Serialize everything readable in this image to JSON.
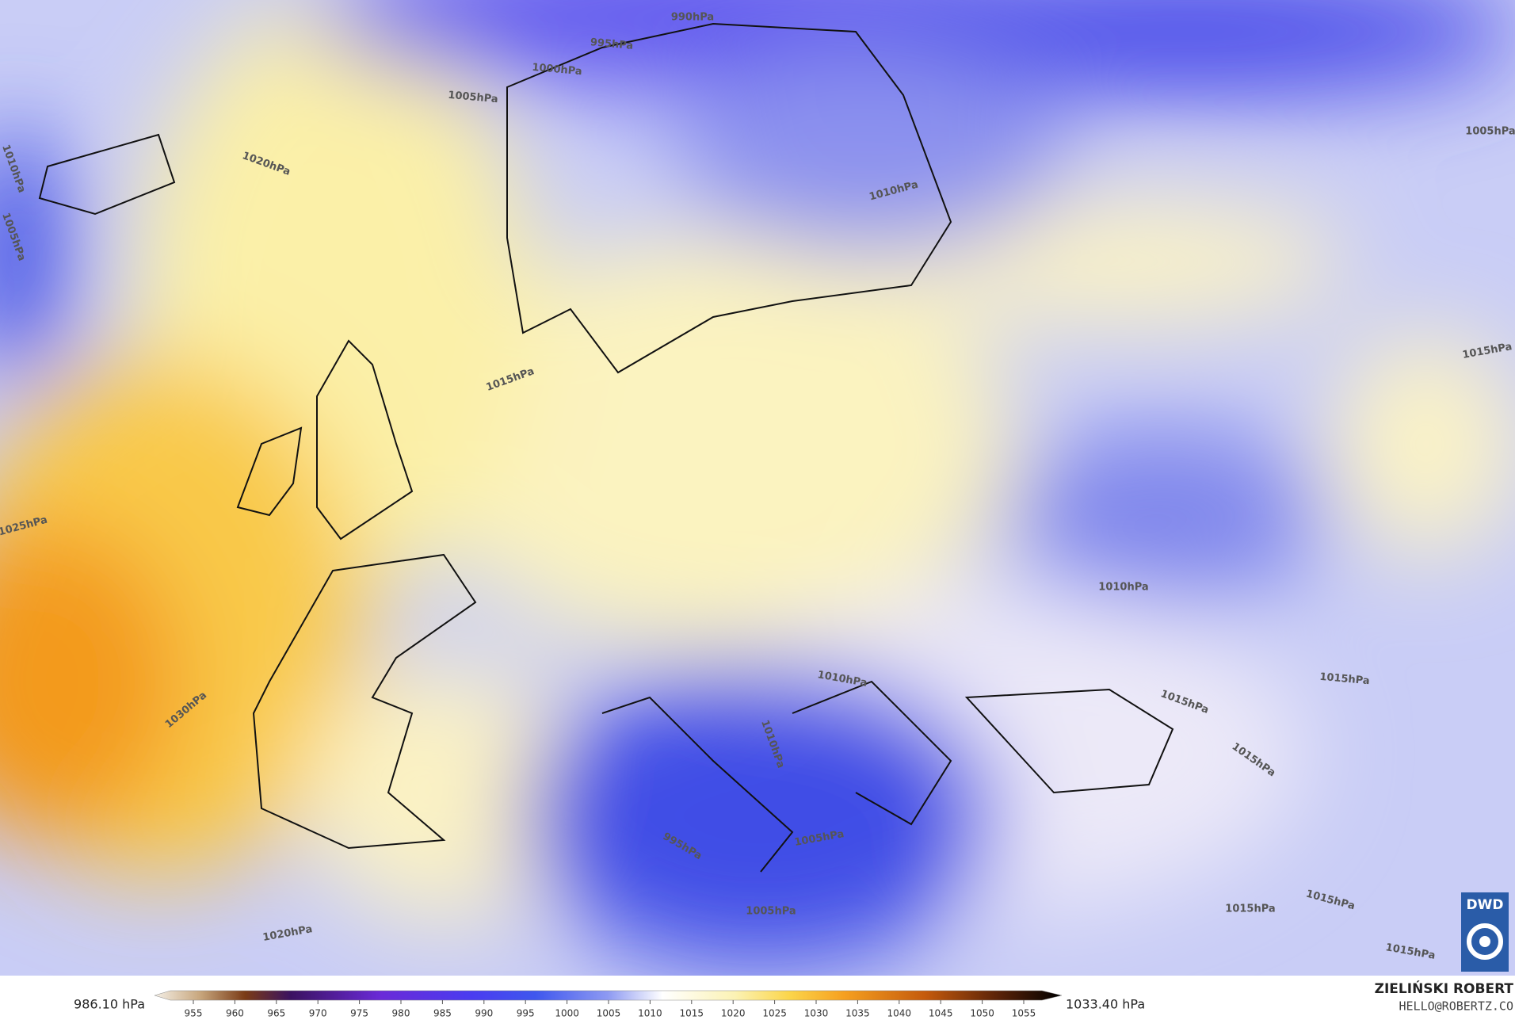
{
  "map": {
    "isobar_labels": [
      "990hPa",
      "995hPa",
      "1000hPa",
      "1005hPa",
      "1005hPa",
      "1010hPa",
      "1005hPa",
      "1020hPa",
      "1010hPa",
      "1015hPa",
      "1015hPa",
      "1025hPa",
      "1030hPa",
      "1010hPa",
      "1010hPa",
      "1015hPa",
      "1015hPa",
      "1015hPa",
      "1010hPa",
      "995hPa",
      "1005hPa",
      "1005hPa",
      "1020hPa",
      "1015hPa",
      "1015hPa",
      "1015hPa"
    ]
  },
  "colorbar": {
    "min_label": "986.10 hPa",
    "max_label": "1033.40 hPa",
    "ticks": [
      955,
      960,
      965,
      970,
      975,
      980,
      985,
      990,
      995,
      1000,
      1005,
      1010,
      1015,
      1020,
      1025,
      1030,
      1035,
      1040,
      1045,
      1050,
      1055
    ]
  },
  "credit": {
    "name": "ZIELIŃSKI ROBERT",
    "email": "HELLO@ROBERTZ.CO"
  },
  "logo": "DWD"
}
